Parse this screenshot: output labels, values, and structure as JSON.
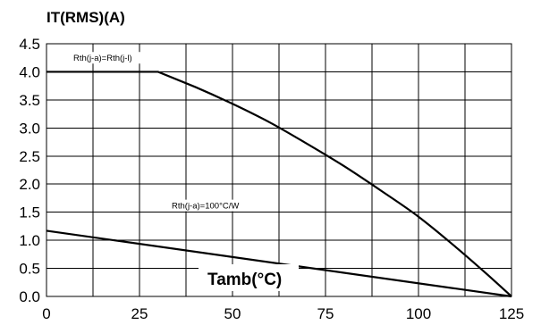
{
  "chart_data": {
    "type": "line",
    "ylabel": "IT(RMS)(A)",
    "xlabel": "Tamb(°C)",
    "xlim": [
      0,
      125
    ],
    "ylim": [
      0,
      4.5
    ],
    "xticks": [
      0,
      25,
      50,
      75,
      100,
      125
    ],
    "yticks": [
      0.0,
      0.5,
      1.0,
      1.5,
      2.0,
      2.5,
      3.0,
      3.5,
      4.0,
      4.5
    ],
    "x_gridlines": [
      0,
      12.5,
      25,
      37.5,
      50,
      62.5,
      75,
      87.5,
      100,
      112.5,
      125
    ],
    "grid": true,
    "series": [
      {
        "name": "Rth(j-a)=Rth(j-l)",
        "x": [
          0,
          30,
          40,
          50,
          60,
          70,
          80,
          90,
          100,
          110,
          118,
          125
        ],
        "y": [
          4.0,
          4.0,
          3.73,
          3.43,
          3.1,
          2.72,
          2.32,
          1.88,
          1.42,
          0.88,
          0.42,
          0.0
        ]
      },
      {
        "name": "Rth(j-a)=100°C/W",
        "x": [
          0,
          125
        ],
        "y": [
          1.17,
          0.0
        ]
      }
    ]
  }
}
